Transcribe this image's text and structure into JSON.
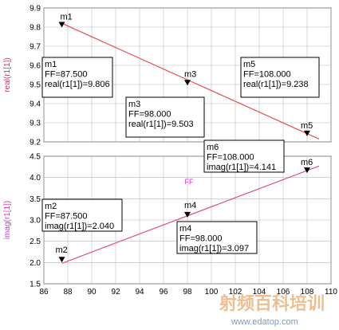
{
  "chart_data": [
    {
      "type": "line",
      "ylabel": "real(r1[1])",
      "xlim": [
        86,
        110
      ],
      "ylim": [
        9.2,
        9.9
      ],
      "xticks": [
        86,
        88,
        90,
        92,
        94,
        96,
        98,
        100,
        102,
        104,
        106,
        108,
        110
      ],
      "yticks": [
        9.2,
        9.3,
        9.4,
        9.5,
        9.6,
        9.7,
        9.8,
        9.9
      ],
      "ytick_labels": [
        "9.2",
        "9.3",
        "9.4",
        "9.5",
        "9.6",
        "9.7",
        "9.8",
        "9.9"
      ],
      "line_color": "#e05050",
      "grid": true,
      "series": [
        {
          "x": [
            87.5,
            109
          ],
          "y": [
            9.82,
            9.215
          ]
        }
      ],
      "markers": [
        {
          "name": "m1",
          "x": 87.5,
          "y": 9.806,
          "lines": [
            "m1",
            "FF=87.500",
            "real(r1[1])=9.806"
          ]
        },
        {
          "name": "m3",
          "x": 98.0,
          "y": 9.503,
          "lines": [
            "m3",
            "FF=98.000",
            "real(r1[1])=9.503"
          ]
        },
        {
          "name": "m5",
          "x": 108.0,
          "y": 9.238,
          "lines": [
            "m5",
            "FF=108.000",
            "real(r1[1])=9.238"
          ]
        }
      ]
    },
    {
      "type": "line",
      "xlabel": "FF",
      "ylabel": "imag(r1[1])",
      "xlim": [
        86,
        110
      ],
      "ylim": [
        1.5,
        4.5
      ],
      "xticks": [
        86,
        88,
        90,
        92,
        94,
        96,
        98,
        100,
        102,
        104,
        106,
        108,
        110
      ],
      "xtick_labels": [
        "86",
        "88",
        "90",
        "92",
        "94",
        "96",
        "98",
        "100",
        "102",
        "104",
        "106",
        "108",
        "110"
      ],
      "yticks": [
        1.5,
        2.0,
        2.5,
        3.0,
        3.5,
        4.0,
        4.5
      ],
      "ytick_labels": [
        "1.5",
        "2.0",
        "2.5",
        "3.0",
        "3.5",
        "4.0",
        "4.5"
      ],
      "line_color": "#e05080",
      "grid": true,
      "series": [
        {
          "x": [
            87.5,
            109
          ],
          "y": [
            1.98,
            4.27
          ]
        }
      ],
      "markers": [
        {
          "name": "m2",
          "x": 87.5,
          "y": 2.04,
          "lines": [
            "m2",
            "FF=87.500",
            "imag(r1[1])=2.040"
          ]
        },
        {
          "name": "m4",
          "x": 98.0,
          "y": 3.097,
          "lines": [
            "m4",
            "FF=98.000",
            "imag(r1[1])=3.097"
          ]
        },
        {
          "name": "m6",
          "x": 108.0,
          "y": 4.141,
          "lines": [
            "m6",
            "FF=108.000",
            "imag(r1[1])=4.141"
          ]
        }
      ]
    }
  ],
  "watermark": {
    "text": "射频百科培训",
    "url": "www.edatop.com"
  }
}
